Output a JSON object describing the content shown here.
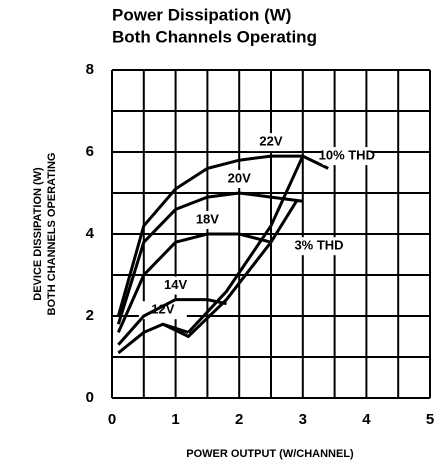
{
  "chart_data": {
    "type": "line",
    "title": "Power Dissipation (W)",
    "subtitle": "Both Channels Operating",
    "x_label": "POWER OUTPUT (W/CHANNEL)",
    "y_label": [
      "DEVICE DISSIPATION (W)",
      "BOTH CHANNELS OPERATING"
    ],
    "xlim": [
      0,
      5
    ],
    "xticks": [
      0,
      1,
      2,
      3,
      4,
      5
    ],
    "ylim": [
      0,
      8
    ],
    "yticks": [
      0,
      2,
      4,
      6,
      8
    ],
    "grid": true,
    "series": [
      {
        "name": "12V",
        "color": "#000000",
        "x": [
          0.1,
          0.5,
          0.8,
          1.2
        ],
        "values": [
          1.1,
          1.6,
          1.8,
          1.6
        ]
      },
      {
        "name": "14V",
        "color": "#000000",
        "x": [
          0.1,
          0.5,
          1.0,
          1.5,
          1.8
        ],
        "values": [
          1.3,
          2.0,
          2.4,
          2.4,
          2.3
        ]
      },
      {
        "name": "18V",
        "color": "#000000",
        "x": [
          0.1,
          0.5,
          1.0,
          1.5,
          2.0,
          2.5
        ],
        "values": [
          1.6,
          3.0,
          3.8,
          4.0,
          4.0,
          3.8
        ]
      },
      {
        "name": "20V",
        "color": "#000000",
        "x": [
          0.1,
          0.5,
          1.0,
          1.5,
          2.0,
          2.5,
          3.0
        ],
        "values": [
          1.8,
          3.8,
          4.6,
          4.9,
          5.0,
          4.9,
          4.8
        ]
      },
      {
        "name": "22V",
        "color": "#000000",
        "x": [
          0.1,
          0.5,
          1.0,
          1.5,
          2.0,
          2.5,
          3.0,
          3.4
        ],
        "values": [
          2.0,
          4.2,
          5.1,
          5.6,
          5.8,
          5.9,
          5.9,
          5.6
        ]
      },
      {
        "name": "10% THD",
        "color": "#000000",
        "x": [
          1.2,
          1.8,
          2.5,
          3.0
        ],
        "values": [
          1.6,
          2.6,
          4.2,
          5.9
        ]
      },
      {
        "name": "3% THD",
        "color": "#000000",
        "x": [
          0.8,
          1.2,
          1.8,
          2.5,
          2.9
        ],
        "values": [
          1.8,
          1.5,
          2.4,
          3.8,
          4.8
        ]
      }
    ]
  }
}
